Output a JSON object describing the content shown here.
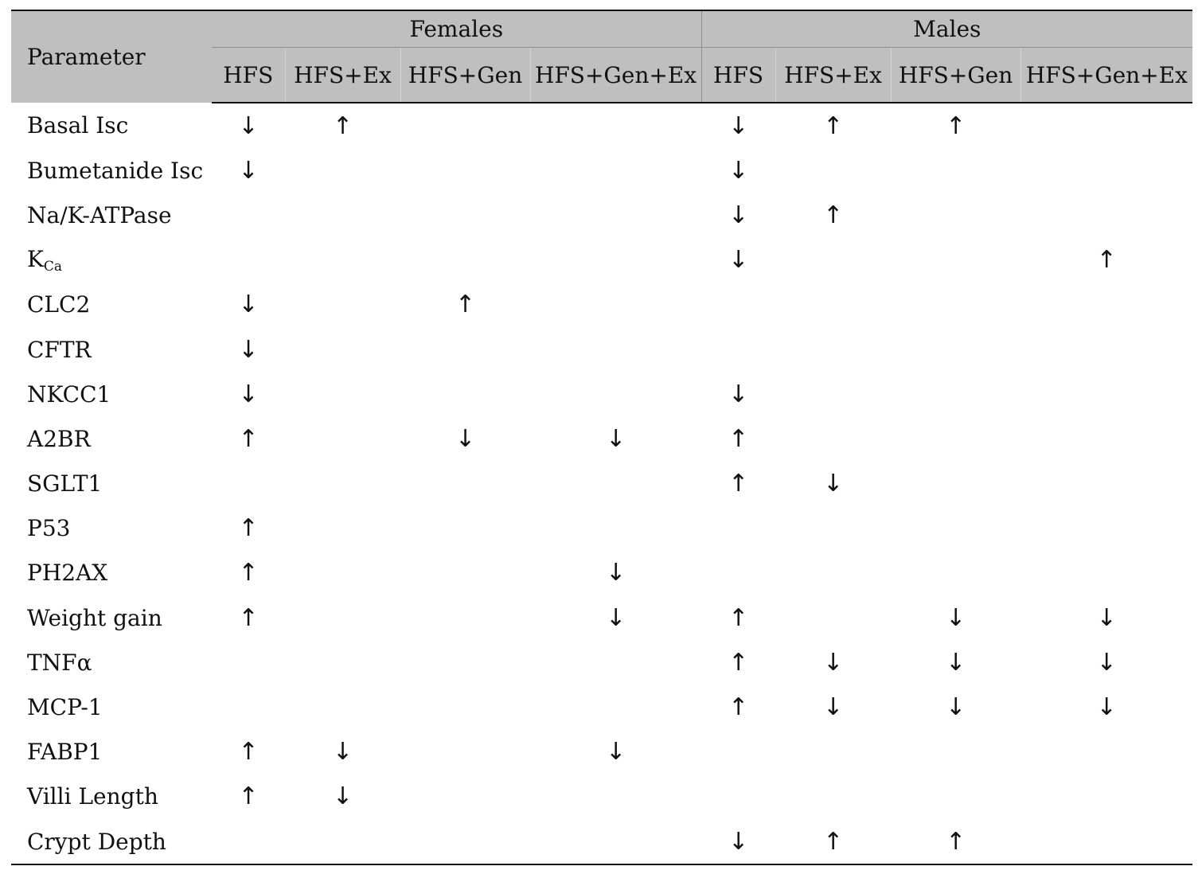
{
  "header": {
    "parameter_label": "Parameter",
    "groups": [
      "Females",
      "Males"
    ],
    "subcolumns": [
      "HFS",
      "HFS+Ex",
      "HFS+Gen",
      "HFS+Gen+Ex",
      "HFS",
      "HFS+Ex",
      "HFS+Gen",
      "HFS+Gen+Ex"
    ]
  },
  "rows": [
    {
      "name": "Basal Isc",
      "cells": [
        "↓",
        "↑",
        "",
        "",
        "↓",
        "↑",
        "↑",
        ""
      ]
    },
    {
      "name": "Bumetanide Isc",
      "cells": [
        "↓",
        "",
        "",
        "",
        "↓",
        "",
        "",
        ""
      ]
    },
    {
      "name": "Na/K-ATPase",
      "cells": [
        "",
        "",
        "",
        "",
        "↓",
        "↑",
        "",
        ""
      ]
    },
    {
      "name": "K",
      "sub": "Ca",
      "cells": [
        "",
        "",
        "",
        "",
        "↓",
        "",
        "",
        "↑"
      ]
    },
    {
      "name": "CLC2",
      "cells": [
        "↓",
        "",
        "↑",
        "",
        "",
        "",
        "",
        ""
      ]
    },
    {
      "name": "CFTR",
      "cells": [
        "↓",
        "",
        "",
        "",
        "",
        "",
        "",
        ""
      ]
    },
    {
      "name": "NKCC1",
      "cells": [
        "↓",
        "",
        "",
        "",
        "↓",
        "",
        "",
        ""
      ]
    },
    {
      "name": "A2BR",
      "cells": [
        "↑",
        "",
        "↓",
        "↓",
        "↑",
        "",
        "",
        ""
      ]
    },
    {
      "name": "SGLT1",
      "cells": [
        "",
        "",
        "",
        "",
        "↑",
        "↓",
        "",
        ""
      ]
    },
    {
      "name": "P53",
      "cells": [
        "↑",
        "",
        "",
        "",
        "",
        "",
        "",
        ""
      ]
    },
    {
      "name": "PH2AX",
      "cells": [
        "↑",
        "",
        "",
        "↓",
        "",
        "",
        "",
        ""
      ]
    },
    {
      "name": "Weight gain",
      "cells": [
        "↑",
        "",
        "",
        "↓",
        "↑",
        "",
        "↓",
        "↓"
      ]
    },
    {
      "name": "TNFα",
      "cells": [
        "",
        "",
        "",
        "",
        "↑",
        "↓",
        "↓",
        "↓"
      ]
    },
    {
      "name": "MCP-1",
      "cells": [
        "",
        "",
        "",
        "",
        "↑",
        "↓",
        "↓",
        "↓"
      ]
    },
    {
      "name": "FABP1",
      "cells": [
        "↑",
        "↓",
        "",
        "↓",
        "",
        "",
        "",
        ""
      ]
    },
    {
      "name": "Villi Length",
      "cells": [
        "↑",
        "↓",
        "",
        "",
        "",
        "",
        "",
        ""
      ]
    },
    {
      "name": "Crypt Depth",
      "cells": [
        "",
        "",
        "",
        "",
        "↓",
        "↑",
        "↑",
        ""
      ]
    }
  ]
}
